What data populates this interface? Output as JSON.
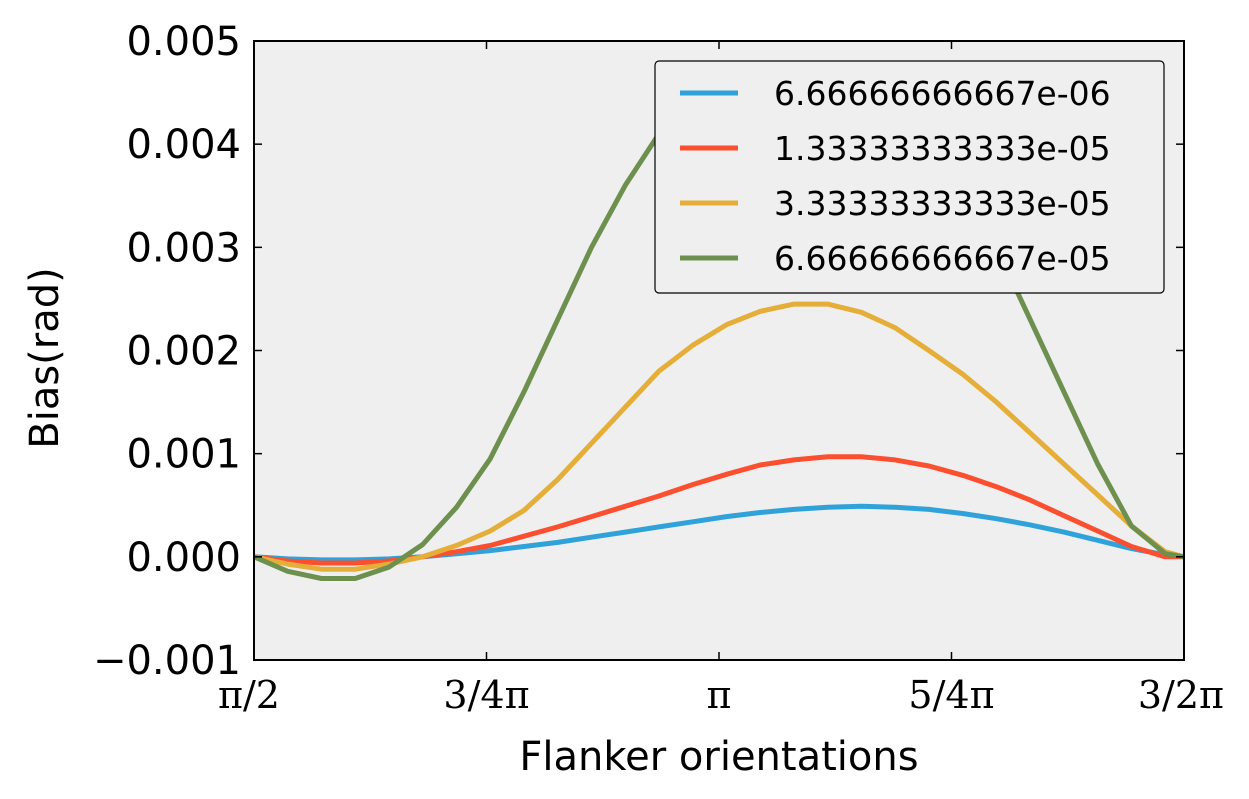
{
  "chart_data": {
    "type": "line",
    "xlabel": "Flanker orientations",
    "ylabel": "Bias(rad)",
    "xlim": [
      1.5708,
      4.7124
    ],
    "ylim": [
      -0.001,
      0.005
    ],
    "grid": false,
    "legend_placement": "top-right",
    "x_ticks": [
      {
        "value": 1.5708,
        "label": "π/2"
      },
      {
        "value": 2.3562,
        "label": "3/4π"
      },
      {
        "value": 3.1416,
        "label": "π"
      },
      {
        "value": 3.927,
        "label": "5/4π"
      },
      {
        "value": 4.7124,
        "label": "3/2π"
      }
    ],
    "y_ticks": [
      {
        "value": -0.001,
        "label": "−0.001"
      },
      {
        "value": 0.0,
        "label": "0.000"
      },
      {
        "value": 0.001,
        "label": "0.001"
      },
      {
        "value": 0.002,
        "label": "0.002"
      },
      {
        "value": 0.003,
        "label": "0.003"
      },
      {
        "value": 0.004,
        "label": "0.004"
      },
      {
        "value": 0.005,
        "label": "0.005"
      }
    ],
    "x": [
      1.5708,
      1.6848,
      1.7988,
      1.9128,
      2.0268,
      2.1408,
      2.2548,
      2.3688,
      2.4828,
      2.5968,
      2.7108,
      2.8248,
      2.9388,
      3.0528,
      3.1668,
      3.2808,
      3.3948,
      3.5088,
      3.6228,
      3.7368,
      3.8508,
      3.9648,
      4.0788,
      4.1928,
      4.3068,
      4.4208,
      4.5348,
      4.6488,
      4.7124
    ],
    "series": [
      {
        "name": "6.66666666667e-06",
        "color": "#30a2da",
        "values": [
          0.0,
          -2e-05,
          -3e-05,
          -3e-05,
          -2e-05,
          0.0,
          3e-05,
          6e-05,
          0.0001,
          0.00014,
          0.00019,
          0.00024,
          0.00029,
          0.00034,
          0.00039,
          0.00043,
          0.00046,
          0.00048,
          0.00049,
          0.00048,
          0.00046,
          0.00042,
          0.00037,
          0.00031,
          0.00024,
          0.00016,
          8e-05,
          2e-05,
          0.0
        ]
      },
      {
        "name": "1.33333333333e-05",
        "color": "#fc4f30",
        "values": [
          0.0,
          -4e-05,
          -6e-05,
          -6e-05,
          -4e-05,
          0.0,
          5e-05,
          0.00011,
          0.0002,
          0.00029,
          0.00039,
          0.00049,
          0.00059,
          0.0007,
          0.0008,
          0.00089,
          0.00094,
          0.00097,
          0.00097,
          0.00094,
          0.00088,
          0.00079,
          0.00068,
          0.00055,
          0.0004,
          0.00025,
          0.0001,
          0.0,
          0.0
        ]
      },
      {
        "name": "3.33333333333e-05",
        "color": "#e5ae38",
        "values": [
          0.0,
          -7e-05,
          -0.00012,
          -0.00012,
          -7e-05,
          0.0,
          0.00011,
          0.00025,
          0.00045,
          0.00075,
          0.0011,
          0.00145,
          0.0018,
          0.00205,
          0.00225,
          0.00238,
          0.00245,
          0.00245,
          0.00237,
          0.00222,
          0.002,
          0.00177,
          0.0015,
          0.0012,
          0.0009,
          0.0006,
          0.0003,
          5e-05,
          0.0
        ]
      },
      {
        "name": "6.66666666667e-05",
        "color": "#6d904f",
        "values": [
          0.0,
          -0.00014,
          -0.00021,
          -0.00021,
          -0.0001,
          0.00012,
          0.00048,
          0.00095,
          0.0016,
          0.0023,
          0.003,
          0.0036,
          0.0041,
          0.0044,
          0.0046,
          0.0047,
          0.00475,
          0.0047,
          0.0046,
          0.0044,
          0.0041,
          0.0036,
          0.003,
          0.0023,
          0.0016,
          0.0009,
          0.0003,
          3e-05,
          0.0
        ]
      }
    ]
  }
}
